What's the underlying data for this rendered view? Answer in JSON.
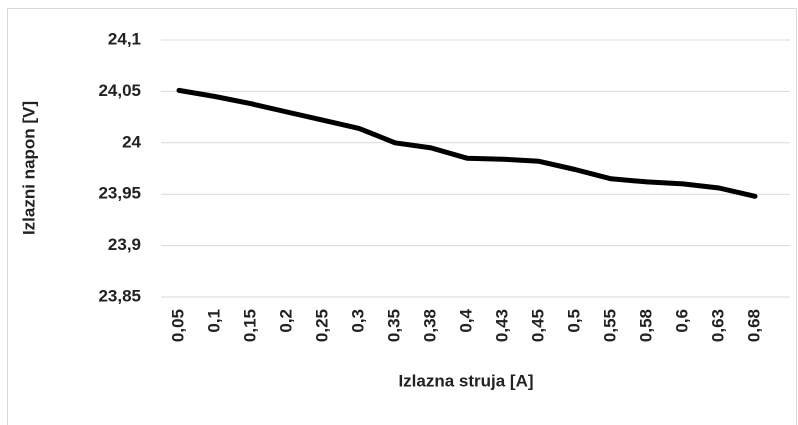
{
  "chart_data": {
    "type": "line",
    "x_label": "Izlazna struja [A]",
    "y_label": "Izlazni napon [V]",
    "categories": [
      "0,05",
      "0,1",
      "0,15",
      "0,2",
      "0,25",
      "0,3",
      "0,35",
      "0,38",
      "0,4",
      "0,43",
      "0,45",
      "0,5",
      "0,55",
      "0,58",
      "0,6",
      "0,63",
      "0,68"
    ],
    "series": [
      {
        "name": "Izlazni napon",
        "color": "#000000",
        "values": [
          24.051,
          24.045,
          24.038,
          24.03,
          24.022,
          24.014,
          24.0,
          23.995,
          23.985,
          23.984,
          23.982,
          23.974,
          23.965,
          23.962,
          23.96,
          23.956,
          23.948
        ]
      }
    ],
    "ylim": [
      23.85,
      24.1
    ],
    "yticks": [
      {
        "value": 23.85,
        "label": "23,85"
      },
      {
        "value": 23.9,
        "label": "23,9"
      },
      {
        "value": 23.95,
        "label": "23,95"
      },
      24,
      {
        "value": 24.05,
        "label": "24,05"
      },
      {
        "value": 24.1,
        "label": "24,1"
      }
    ],
    "grid": true
  }
}
